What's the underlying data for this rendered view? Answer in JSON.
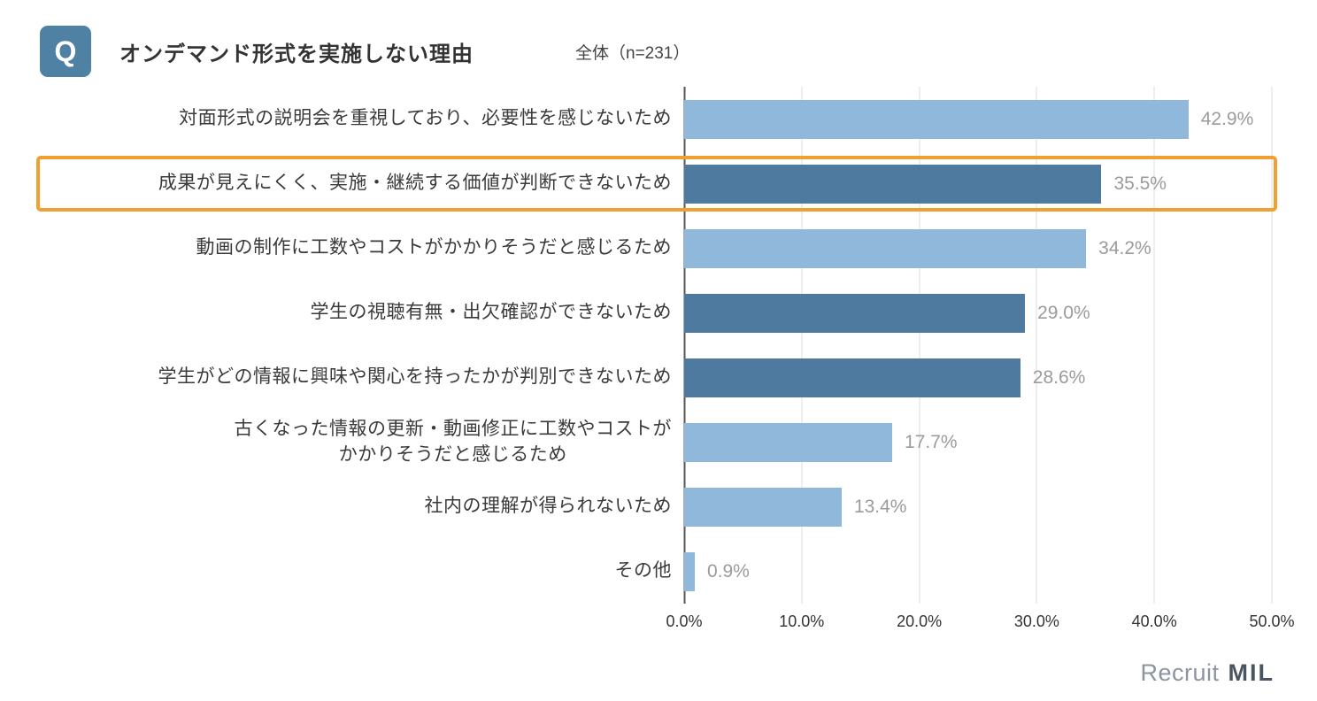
{
  "header": {
    "q_label": "Q",
    "title": "オンデマンド形式を実施しない理由",
    "sample": "全体（n=231）"
  },
  "chart_data": {
    "type": "bar",
    "orientation": "horizontal",
    "title": "オンデマンド形式を実施しない理由",
    "sample_label": "全体（n=231）",
    "categories": [
      "対面形式の説明会を重視しており、必要性を感じないため",
      "成果が見えにくく、実施・継続する価値が判断できないため",
      "動画の制作に工数やコストがかかりそうだと感じるため",
      "学生の視聴有無・出欠確認ができないため",
      "学生がどの情報に興味や関心を持ったかが判別できないため",
      "古くなった情報の更新・動画修正に工数やコストが\nかかりそうだと感じるため",
      "社内の理解が得られないため",
      "その他"
    ],
    "values": [
      42.9,
      35.5,
      34.2,
      29.0,
      28.6,
      17.7,
      13.4,
      0.9
    ],
    "value_labels": [
      "42.9%",
      "35.5%",
      "34.2%",
      "29.0%",
      "28.6%",
      "17.7%",
      "13.4%",
      "0.9%"
    ],
    "bar_styles": [
      "light",
      "dark",
      "light",
      "dark",
      "dark",
      "light",
      "light",
      "light"
    ],
    "highlighted_index": 1,
    "xlim": [
      0,
      50
    ],
    "x_ticks": [
      "0.0%",
      "10.0%",
      "20.0%",
      "30.0%",
      "40.0%",
      "50.0%"
    ],
    "grid": true,
    "legend": "none",
    "colors": {
      "light": "#8fb8da",
      "dark": "#4f7aa0",
      "highlight": "#f0a030"
    }
  },
  "footer": {
    "logo_recruit": "Recruit",
    "logo_mil": "MIL"
  }
}
